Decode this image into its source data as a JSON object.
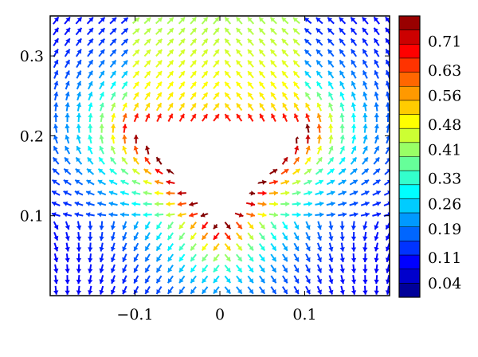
{
  "chart_data": {
    "type": "vector-field",
    "title": "",
    "xlabel": "",
    "ylabel": "",
    "xlim": [
      -0.2,
      0.2
    ],
    "ylim": [
      0.0,
      0.35
    ],
    "x_ticks": [
      {
        "value": -0.1,
        "label": "−0.1"
      },
      {
        "value": 0,
        "label": "0"
      },
      {
        "value": 0.1,
        "label": "0.1"
      }
    ],
    "y_ticks": [
      {
        "value": 0.1,
        "label": "0.1"
      },
      {
        "value": 0.2,
        "label": "0.2"
      },
      {
        "value": 0.3,
        "label": "0.3"
      }
    ],
    "obstacle_polygon": [
      [
        -0.1,
        0.21
      ],
      [
        0.1,
        0.21
      ],
      [
        0.0,
        0.085
      ]
    ],
    "arrow_grid_step": 0.0135,
    "colormap": "jet",
    "colorbar": {
      "min": 0.0,
      "max": 0.78,
      "tick_labels": [
        "0.71",
        "0.63",
        "0.56",
        "0.48",
        "0.41",
        "0.33",
        "0.26",
        "0.19",
        "0.11",
        "0.04"
      ],
      "tick_values": [
        0.71,
        0.63,
        0.56,
        0.48,
        0.41,
        0.33,
        0.26,
        0.19,
        0.11,
        0.04
      ],
      "bands": 20,
      "position": "right"
    },
    "grid": false,
    "legend": "none"
  }
}
